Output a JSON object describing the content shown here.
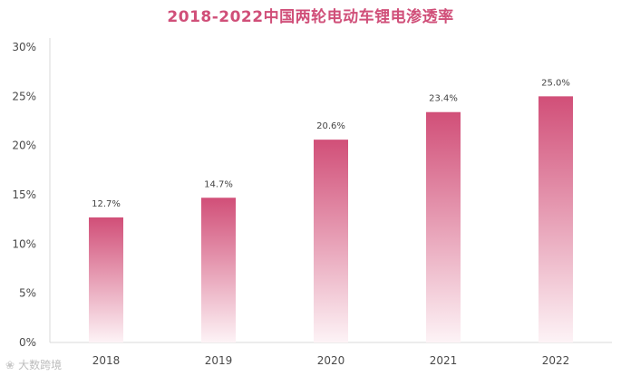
{
  "chart_data": {
    "type": "bar",
    "title": "2018-2022中国两轮电动车锂电渗透率",
    "categories": [
      "2018",
      "2019",
      "2020",
      "2021",
      "2022"
    ],
    "values": [
      12.7,
      14.7,
      20.6,
      23.4,
      25.0
    ],
    "value_labels": [
      "12.7%",
      "14.7%",
      "20.6%",
      "23.4%",
      "25.0%"
    ],
    "y_ticks": [
      0,
      5,
      10,
      15,
      20,
      25,
      30
    ],
    "y_tick_labels": [
      "0%",
      "5%",
      "10%",
      "15%",
      "20%",
      "25%",
      "30%"
    ],
    "ylim": [
      0,
      30
    ],
    "xlabel": "",
    "ylabel": "",
    "grid": false,
    "legend": "none",
    "colors": {
      "bar_top": "#d14f78",
      "bar_bottom": "#fdf3f6",
      "title": "#d04f79",
      "axis": "#d9d9d9"
    }
  },
  "watermark": {
    "text": "大数跨境",
    "icon": "swirl-logo-icon"
  }
}
